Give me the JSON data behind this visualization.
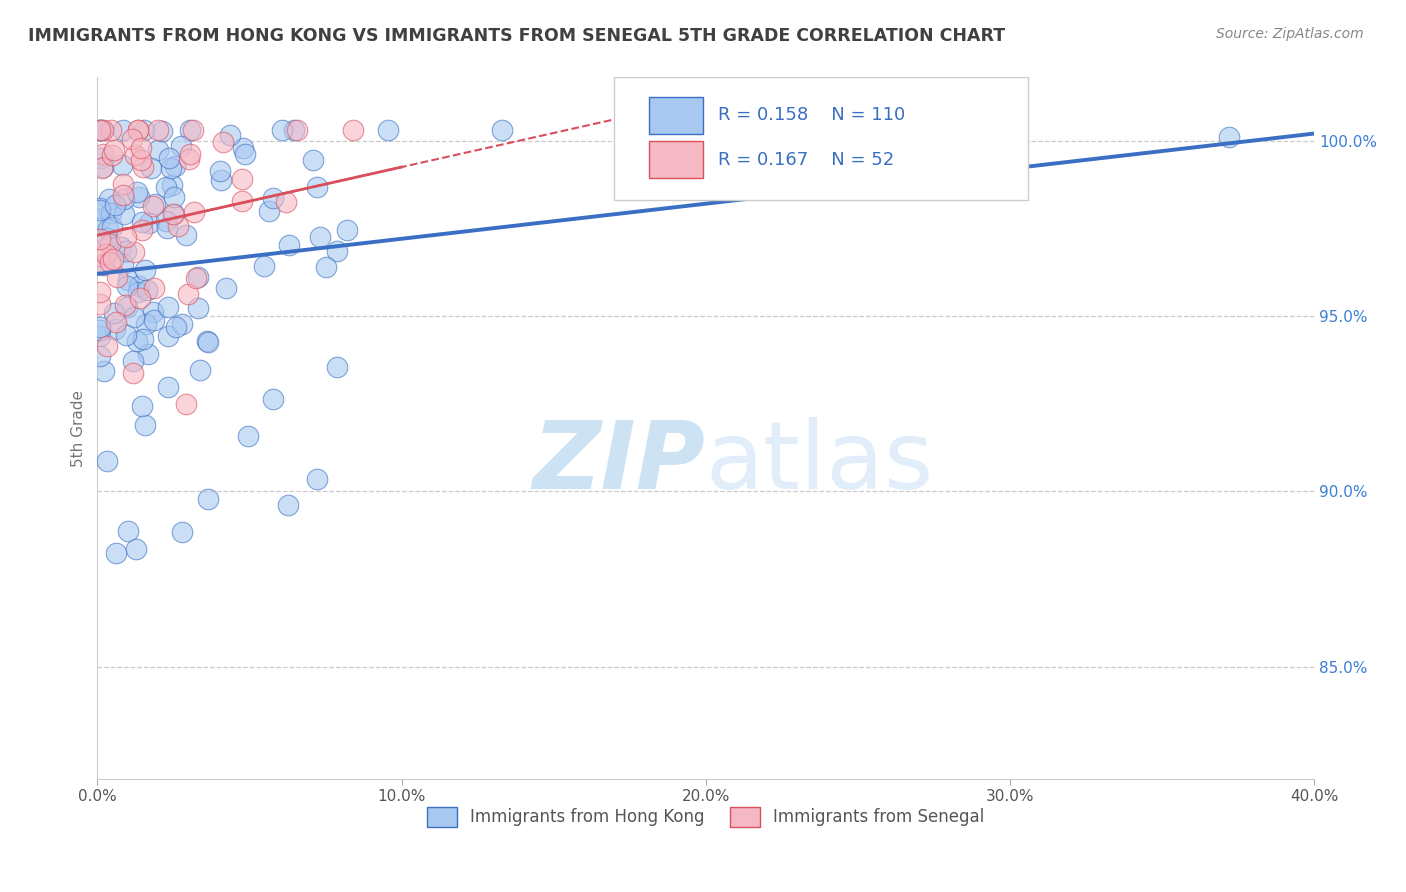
{
  "title": "IMMIGRANTS FROM HONG KONG VS IMMIGRANTS FROM SENEGAL 5TH GRADE CORRELATION CHART",
  "source": "Source: ZipAtlas.com",
  "xlabel_blue": "Immigrants from Hong Kong",
  "xlabel_pink": "Immigrants from Senegal",
  "ylabel": "5th Grade",
  "R_blue": 0.158,
  "N_blue": 110,
  "R_pink": 0.167,
  "N_pink": 52,
  "color_blue": "#a8c8f0",
  "color_pink": "#f5b8c4",
  "line_blue": "#3a6fc4",
  "line_pink": "#d94f5c",
  "xmin": 0.0,
  "xmax": 0.4,
  "ymin": 0.818,
  "ymax": 1.018,
  "yticks": [
    0.85,
    0.9,
    0.95,
    1.0
  ],
  "ytick_labels": [
    "85.0%",
    "90.0%",
    "95.0%",
    "100.0%"
  ],
  "xticks": [
    0.0,
    0.1,
    0.2,
    0.3,
    0.4
  ],
  "xtick_labels": [
    "0.0%",
    "10.0%",
    "20.0%",
    "30.0%",
    "40.0%"
  ],
  "watermark_zip": "ZIP",
  "watermark_atlas": "atlas",
  "title_color": "#404040",
  "axis_label_color": "#777777",
  "tick_color": "#3a7fd4",
  "grid_color": "#cccccc",
  "legend_text_color": "#3a6fc4",
  "blue_trend_y0": 0.962,
  "blue_trend_y1": 1.002,
  "pink_trend_y0": 0.973,
  "pink_trend_y1": 1.008,
  "pink_trend_x1": 0.18
}
